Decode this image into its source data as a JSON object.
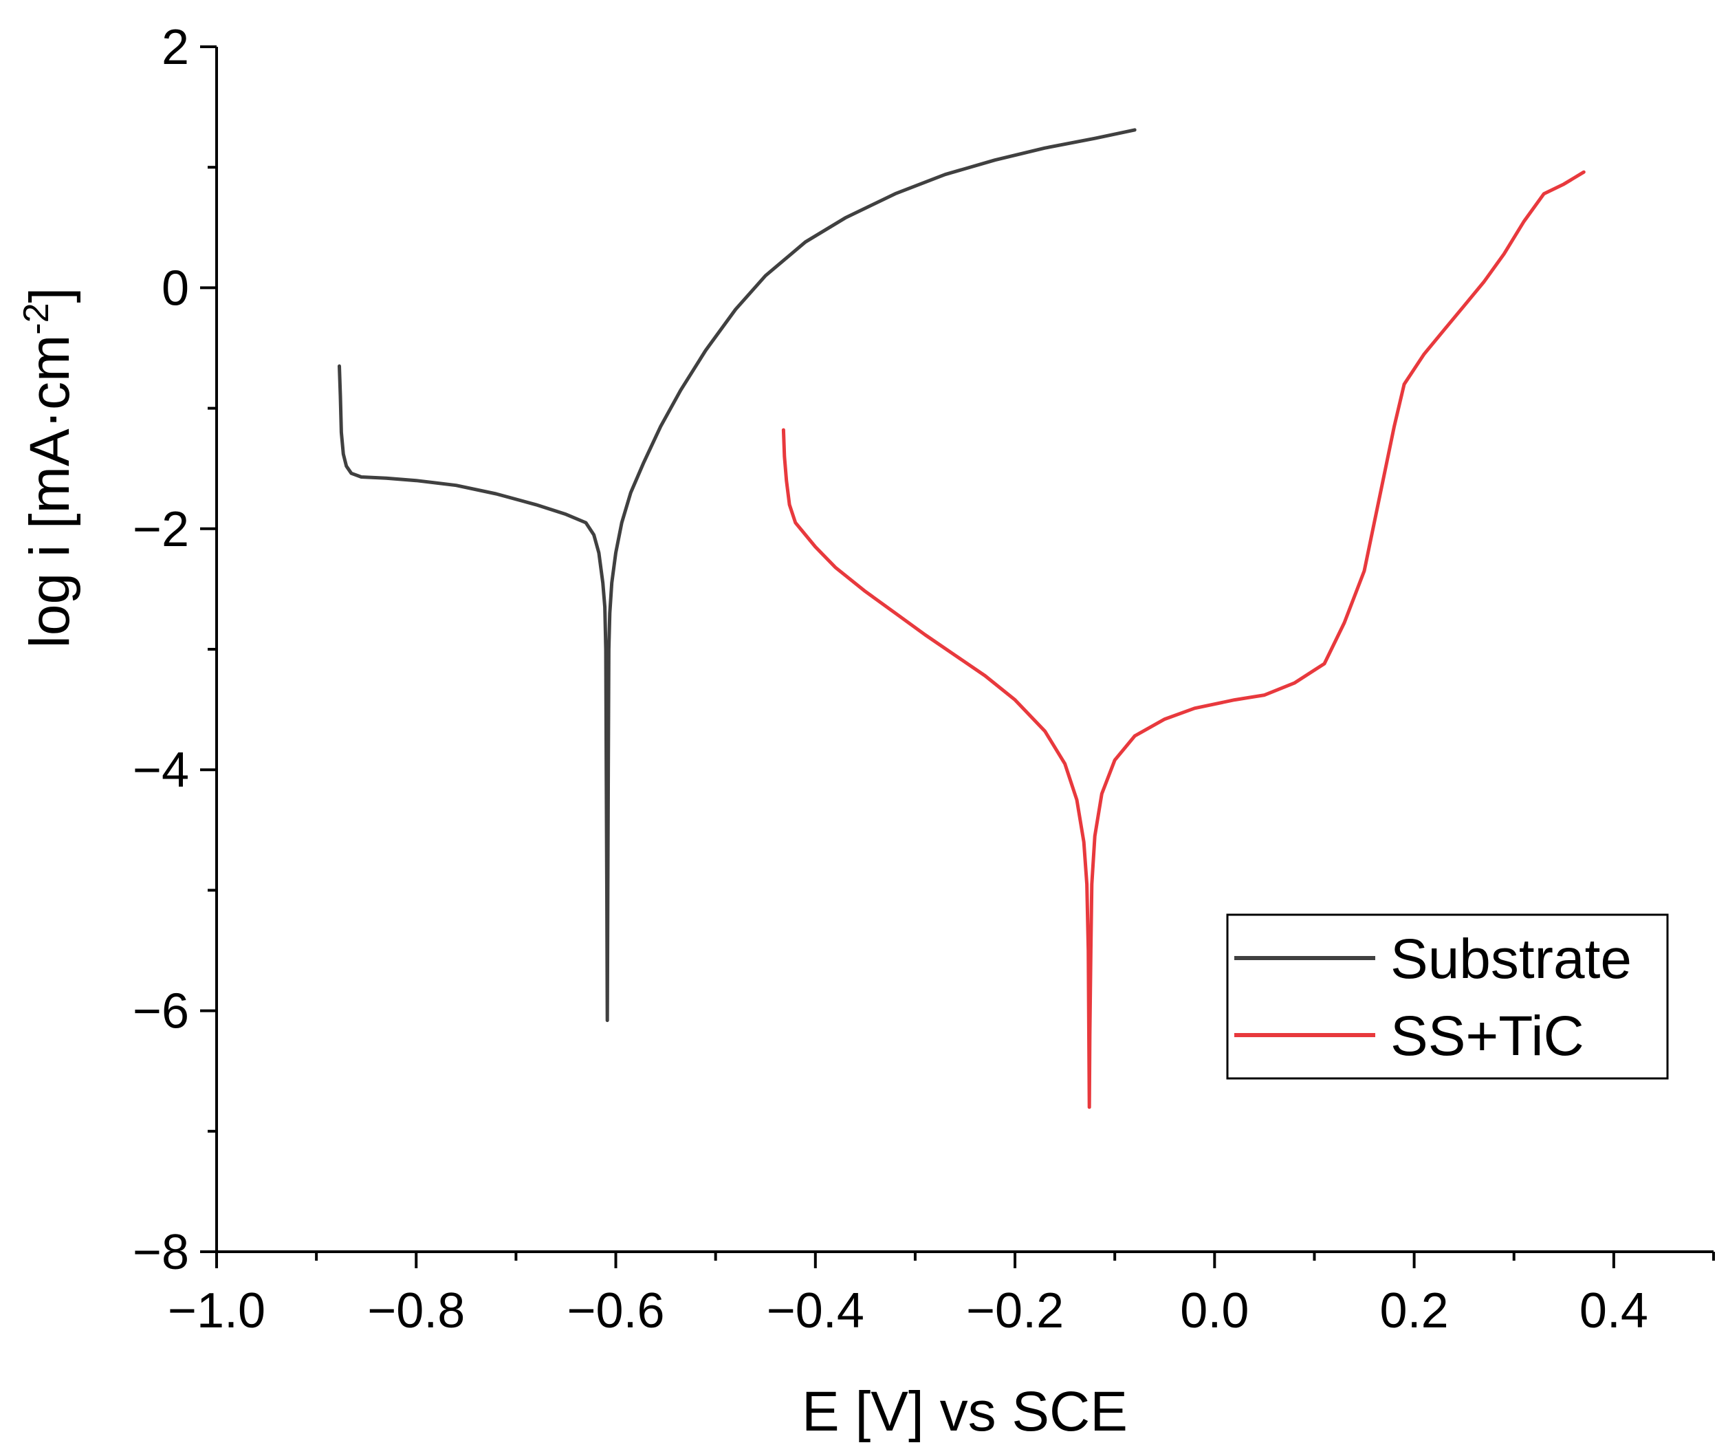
{
  "chart_data": {
    "type": "line",
    "title": "",
    "xlabel": "E [V] vs SCE",
    "ylabel_main": "log i [mA·cm",
    "ylabel_sup": "-2",
    "ylabel_end": "]",
    "xlim": [
      -1.0,
      0.5
    ],
    "ylim": [
      -8,
      2
    ],
    "x_ticks": [
      -1.0,
      -0.8,
      -0.6,
      -0.4,
      -0.2,
      0.0,
      0.2,
      0.4
    ],
    "x_tick_labels": [
      "−1.0",
      "−0.8",
      "−0.6",
      "−0.4",
      "−0.2",
      "0.0",
      "0.2",
      "0.4"
    ],
    "x_minor_ticks": [
      -0.9,
      -0.7,
      -0.5,
      -0.3,
      -0.1,
      0.1,
      0.3,
      0.5
    ],
    "y_ticks": [
      2,
      0,
      -2,
      -4,
      -6,
      -8
    ],
    "y_tick_labels": [
      "2",
      "0",
      "−2",
      "−4",
      "−6",
      "−8"
    ],
    "y_minor_ticks": [
      1,
      -1,
      -3,
      -5,
      -7
    ],
    "grid": false,
    "legend_position": "lower-right",
    "series": [
      {
        "name": "Substrate",
        "color": "#404040",
        "points": [
          [
            -0.877,
            -0.65
          ],
          [
            -0.876,
            -0.9
          ],
          [
            -0.875,
            -1.2
          ],
          [
            -0.873,
            -1.38
          ],
          [
            -0.87,
            -1.48
          ],
          [
            -0.865,
            -1.54
          ],
          [
            -0.855,
            -1.57
          ],
          [
            -0.83,
            -1.58
          ],
          [
            -0.8,
            -1.6
          ],
          [
            -0.76,
            -1.64
          ],
          [
            -0.72,
            -1.71
          ],
          [
            -0.68,
            -1.8
          ],
          [
            -0.65,
            -1.88
          ],
          [
            -0.63,
            -1.95
          ],
          [
            -0.622,
            -2.05
          ],
          [
            -0.617,
            -2.2
          ],
          [
            -0.613,
            -2.45
          ],
          [
            -0.611,
            -2.65
          ],
          [
            -0.61,
            -3.0
          ],
          [
            -0.6095,
            -4.0
          ],
          [
            -0.609,
            -5.0
          ],
          [
            -0.6085,
            -6.08
          ],
          [
            -0.608,
            -5.0
          ],
          [
            -0.6075,
            -4.0
          ],
          [
            -0.607,
            -3.0
          ],
          [
            -0.606,
            -2.7
          ],
          [
            -0.604,
            -2.45
          ],
          [
            -0.6,
            -2.2
          ],
          [
            -0.594,
            -1.95
          ],
          [
            -0.585,
            -1.7
          ],
          [
            -0.572,
            -1.45
          ],
          [
            -0.555,
            -1.15
          ],
          [
            -0.535,
            -0.85
          ],
          [
            -0.51,
            -0.52
          ],
          [
            -0.48,
            -0.18
          ],
          [
            -0.45,
            0.1
          ],
          [
            -0.41,
            0.38
          ],
          [
            -0.37,
            0.58
          ],
          [
            -0.32,
            0.78
          ],
          [
            -0.27,
            0.94
          ],
          [
            -0.22,
            1.06
          ],
          [
            -0.17,
            1.16
          ],
          [
            -0.12,
            1.24
          ],
          [
            -0.08,
            1.31
          ]
        ]
      },
      {
        "name": "SS+TiC",
        "color": "#e8393d",
        "points": [
          [
            -0.432,
            -1.18
          ],
          [
            -0.431,
            -1.4
          ],
          [
            -0.429,
            -1.6
          ],
          [
            -0.426,
            -1.8
          ],
          [
            -0.42,
            -1.95
          ],
          [
            -0.4,
            -2.15
          ],
          [
            -0.38,
            -2.32
          ],
          [
            -0.35,
            -2.52
          ],
          [
            -0.32,
            -2.7
          ],
          [
            -0.29,
            -2.88
          ],
          [
            -0.26,
            -3.05
          ],
          [
            -0.23,
            -3.22
          ],
          [
            -0.2,
            -3.42
          ],
          [
            -0.17,
            -3.68
          ],
          [
            -0.15,
            -3.95
          ],
          [
            -0.138,
            -4.25
          ],
          [
            -0.131,
            -4.6
          ],
          [
            -0.128,
            -4.95
          ],
          [
            -0.1265,
            -5.5
          ],
          [
            -0.126,
            -6.2
          ],
          [
            -0.1255,
            -6.8
          ],
          [
            -0.125,
            -6.2
          ],
          [
            -0.124,
            -5.5
          ],
          [
            -0.123,
            -4.95
          ],
          [
            -0.12,
            -4.55
          ],
          [
            -0.113,
            -4.2
          ],
          [
            -0.1,
            -3.92
          ],
          [
            -0.08,
            -3.72
          ],
          [
            -0.05,
            -3.58
          ],
          [
            -0.02,
            -3.49
          ],
          [
            0.02,
            -3.42
          ],
          [
            0.05,
            -3.38
          ],
          [
            0.08,
            -3.28
          ],
          [
            0.11,
            -3.12
          ],
          [
            0.13,
            -2.78
          ],
          [
            0.15,
            -2.35
          ],
          [
            0.165,
            -1.75
          ],
          [
            0.18,
            -1.15
          ],
          [
            0.19,
            -0.8
          ],
          [
            0.21,
            -0.55
          ],
          [
            0.23,
            -0.35
          ],
          [
            0.25,
            -0.15
          ],
          [
            0.27,
            0.05
          ],
          [
            0.29,
            0.28
          ],
          [
            0.31,
            0.55
          ],
          [
            0.33,
            0.78
          ],
          [
            0.35,
            0.86
          ],
          [
            0.37,
            0.96
          ]
        ]
      }
    ]
  }
}
